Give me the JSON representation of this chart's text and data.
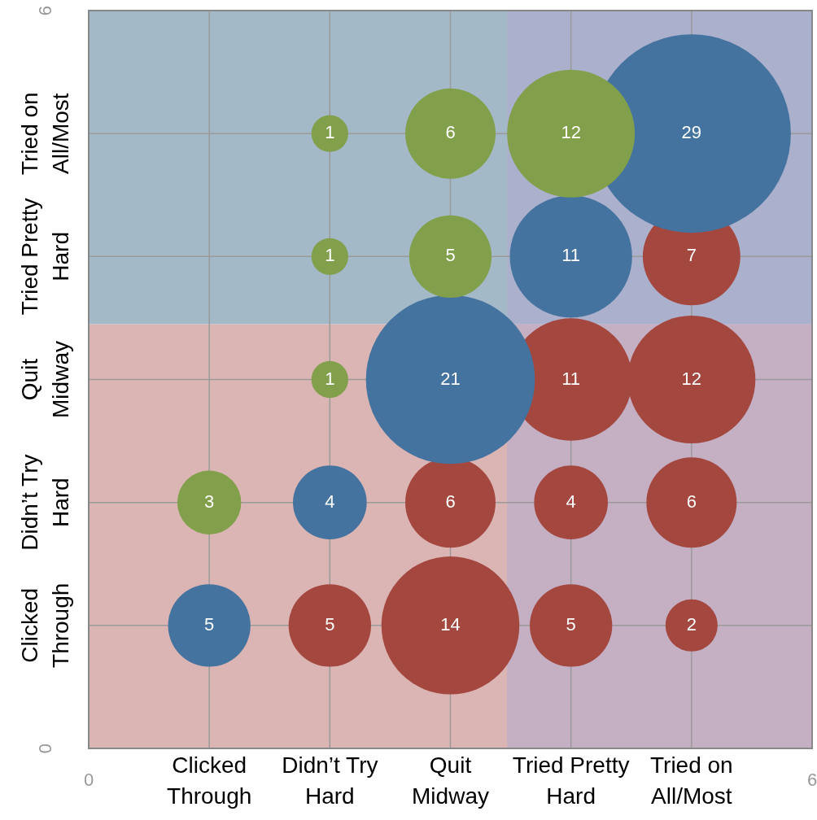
{
  "chart_data": {
    "type": "bubble",
    "legend": false,
    "grid": true,
    "xlim": [
      0,
      6
    ],
    "ylim": [
      0,
      6
    ],
    "xticks": [
      0,
      {
        "value": 1,
        "label": "Clicked Through"
      },
      {
        "value": 2,
        "label": "Didn’t Try Hard"
      },
      {
        "value": 3,
        "label": "Quit Midway"
      },
      {
        "value": 4,
        "label": "Tried Pretty Hard"
      },
      {
        "value": 5,
        "label": "Tried on All/Most"
      },
      6
    ],
    "yticks": [
      0,
      {
        "value": 1,
        "label": "Clicked Through"
      },
      {
        "value": 2,
        "label": "Didn’t Try Hard"
      },
      {
        "value": 3,
        "label": "Quit Midway"
      },
      {
        "value": 4,
        "label": "Tried Pretty Hard"
      },
      {
        "value": 5,
        "label": "Tried on All/Most"
      },
      6
    ],
    "bands": [
      {
        "axis": "y",
        "from": 0,
        "to": 3.45,
        "color": "#dbb5b3"
      },
      {
        "axis": "y",
        "from": 3.45,
        "to": 6,
        "color": "#a4b9c8"
      },
      {
        "axis": "x",
        "from": 3.47,
        "to": 6,
        "color": "#b0aad0"
      }
    ],
    "series": [
      {
        "color": "#82a04b",
        "x": [
          2,
          3,
          4,
          2,
          3,
          2,
          1
        ],
        "values": [
          5,
          5,
          5,
          4,
          4,
          3,
          2
        ],
        "sizes": [
          1,
          6,
          12,
          1,
          5,
          1,
          3
        ],
        "value_labels": [
          "1",
          "6",
          "12",
          "1",
          "5",
          "1",
          "3"
        ]
      },
      {
        "color": "#44739f",
        "x": [
          5,
          4,
          3,
          2,
          1
        ],
        "values": [
          5,
          4,
          3,
          2,
          1
        ],
        "sizes": [
          29,
          11,
          21,
          4,
          5
        ],
        "value_labels": [
          "29",
          "11",
          "21",
          "4",
          "5"
        ]
      },
      {
        "color": "#a3473f",
        "x": [
          5,
          4,
          5,
          3,
          4,
          5,
          2,
          3,
          4,
          5
        ],
        "values": [
          4,
          3,
          3,
          2,
          2,
          2,
          1,
          1,
          1,
          1
        ],
        "sizes": [
          7,
          11,
          12,
          6,
          4,
          6,
          5,
          14,
          5,
          2
        ],
        "value_labels": [
          "7",
          "11",
          "12",
          "6",
          "4",
          "6",
          "5",
          "14",
          "5",
          "2"
        ]
      }
    ]
  }
}
